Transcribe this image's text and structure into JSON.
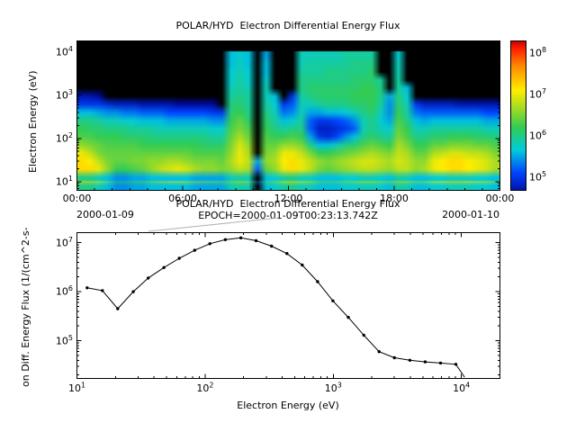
{
  "figure_bg": "#ffffff",
  "connector_line_color": "#b3b3b3",
  "chart_data": [
    {
      "type": "heatmap",
      "title": "POLAR/HYD  Electron Differential Energy Flux",
      "ylabel": "Electron Energy (eV)",
      "y_ticks": [
        "10^1",
        "10^2",
        "10^3",
        "10^4"
      ],
      "y_tick_log_values": [
        1,
        2,
        3,
        4
      ],
      "ylim_log_ev": [
        0.8,
        4.25
      ],
      "x_ticks": [
        "00:00",
        "06:00",
        "12:00",
        "18:00",
        "00:00"
      ],
      "x_tick_hours": [
        0,
        6,
        12,
        18,
        24
      ],
      "x_date_start": "2000-01-09",
      "x_date_end": "2000-01-10",
      "xlim_hours": [
        0,
        24
      ],
      "colorbar": {
        "ticks": [
          "10^5",
          "10^6",
          "10^7",
          "10^8"
        ],
        "tick_log_values": [
          5,
          6,
          7,
          8
        ],
        "range_log_flux": [
          4.7,
          8.3
        ],
        "no_data_color": "#000000",
        "palette_stops": [
          [
            4.5,
            "#000088"
          ],
          [
            5.1,
            "#0044ff"
          ],
          [
            5.65,
            "#00ccdd"
          ],
          [
            6.2,
            "#33cc55"
          ],
          [
            6.7,
            "#aadd22"
          ],
          [
            7.1,
            "#ffee00"
          ],
          [
            7.7,
            "#ff8800"
          ],
          [
            8.1,
            "#ff2200"
          ],
          [
            8.3,
            "#cc0000"
          ]
        ]
      },
      "grid": {
        "hours_per_column": 0.5,
        "energy_log_range": [
          1,
          4
        ],
        "rows_per_column": 16,
        "values_log_flux": [
          [
            6.0,
            7.2,
            7.2,
            7.0,
            6.6,
            6.3,
            6.2,
            6.0,
            5.6,
            5.0,
            4.7,
            0,
            0,
            0,
            0,
            0
          ],
          [
            6.0,
            7.2,
            7.1,
            6.8,
            6.5,
            6.3,
            6.1,
            6.0,
            5.6,
            5.0,
            4.7,
            0,
            0,
            0,
            0,
            0
          ],
          [
            5.8,
            7.0,
            6.8,
            6.5,
            6.4,
            6.2,
            6.1,
            5.9,
            5.5,
            5.0,
            4.6,
            0,
            0,
            0,
            0,
            0
          ],
          [
            5.6,
            6.6,
            6.5,
            6.4,
            6.3,
            6.2,
            6.0,
            5.8,
            5.4,
            4.9,
            0,
            0,
            0,
            0,
            0,
            0
          ],
          [
            5.4,
            6.2,
            6.4,
            6.4,
            6.3,
            6.2,
            6.0,
            5.8,
            5.4,
            4.8,
            0,
            0,
            0,
            0,
            0,
            0
          ],
          [
            5.4,
            6.2,
            6.4,
            6.4,
            6.3,
            6.1,
            6.0,
            5.7,
            5.3,
            4.8,
            0,
            0,
            0,
            0,
            0,
            0
          ],
          [
            5.5,
            6.3,
            6.5,
            6.4,
            6.3,
            6.1,
            5.9,
            5.7,
            5.3,
            4.8,
            0,
            0,
            0,
            0,
            0,
            0
          ],
          [
            5.5,
            6.4,
            6.5,
            6.4,
            6.2,
            6.1,
            5.9,
            5.6,
            5.2,
            4.7,
            0,
            0,
            0,
            0,
            0,
            0
          ],
          [
            5.6,
            6.6,
            6.6,
            6.4,
            6.2,
            6.0,
            5.9,
            5.6,
            5.2,
            4.7,
            0,
            0,
            0,
            0,
            0,
            0
          ],
          [
            5.6,
            6.8,
            6.6,
            6.4,
            6.2,
            6.0,
            5.8,
            5.6,
            5.2,
            4.7,
            0,
            0,
            0,
            0,
            0,
            0
          ],
          [
            5.6,
            6.9,
            6.7,
            6.4,
            6.2,
            6.0,
            5.8,
            5.5,
            5.1,
            4.7,
            0,
            0,
            0,
            0,
            0,
            0
          ],
          [
            5.6,
            7.0,
            6.7,
            6.4,
            6.2,
            6.0,
            5.8,
            5.5,
            5.1,
            4.6,
            0,
            0,
            0,
            0,
            0,
            0
          ],
          [
            5.6,
            6.9,
            6.6,
            6.4,
            6.2,
            6.0,
            5.8,
            5.5,
            5.1,
            4.6,
            0,
            0,
            0,
            0,
            0,
            0
          ],
          [
            5.5,
            6.7,
            6.5,
            6.3,
            6.2,
            6.0,
            5.8,
            5.5,
            5.1,
            4.6,
            0,
            0,
            0,
            0,
            0,
            0
          ],
          [
            5.5,
            6.6,
            6.5,
            6.3,
            6.1,
            6.0,
            5.8,
            5.5,
            5.1,
            4.6,
            0,
            0,
            0,
            0,
            0,
            0
          ],
          [
            5.5,
            6.6,
            6.5,
            6.3,
            6.1,
            5.9,
            5.7,
            5.4,
            5.0,
            4.6,
            0,
            0,
            0,
            0,
            0,
            0
          ],
          [
            5.5,
            6.5,
            6.4,
            6.3,
            6.1,
            5.9,
            5.7,
            5.4,
            5.0,
            0,
            0,
            0,
            0,
            0,
            0,
            0
          ],
          [
            5.8,
            6.6,
            6.7,
            6.6,
            6.5,
            6.4,
            6.3,
            6.2,
            6.1,
            6.0,
            5.9,
            5.8,
            5.7,
            5.7,
            5.6,
            5.6
          ],
          [
            5.9,
            6.8,
            7.0,
            7.0,
            6.9,
            6.7,
            6.5,
            6.4,
            6.2,
            6.1,
            6.0,
            5.9,
            5.9,
            5.8,
            5.8,
            5.7
          ],
          [
            5.8,
            6.7,
            6.8,
            6.7,
            6.6,
            6.4,
            6.3,
            6.1,
            6.0,
            5.9,
            5.9,
            5.8,
            5.7,
            5.7,
            5.6,
            5.6
          ],
          [
            0,
            5.2,
            5.5,
            0,
            0,
            0,
            0,
            0,
            0,
            0,
            0,
            0,
            0,
            0,
            0,
            0
          ],
          [
            5.6,
            6.4,
            6.6,
            6.5,
            6.4,
            6.3,
            6.2,
            6.1,
            6.0,
            5.9,
            5.8,
            5.8,
            5.7,
            5.6,
            5.6,
            5.5
          ],
          [
            5.7,
            6.6,
            6.7,
            6.6,
            6.4,
            6.2,
            6.0,
            5.9,
            5.8,
            5.7,
            5.6,
            0,
            0,
            0,
            0,
            0
          ],
          [
            5.9,
            7.0,
            7.1,
            7.0,
            6.6,
            6.2,
            5.9,
            5.6,
            5.3,
            5.0,
            0,
            0,
            0,
            0,
            0,
            0
          ],
          [
            6.0,
            7.2,
            7.2,
            7.0,
            6.6,
            6.3,
            6.0,
            5.7,
            5.4,
            5.2,
            5.0,
            0,
            0,
            0,
            0,
            0
          ],
          [
            5.8,
            7.0,
            7.0,
            6.8,
            6.5,
            6.2,
            6.0,
            5.9,
            5.8,
            5.8,
            5.9,
            6.0,
            6.0,
            5.9,
            5.8,
            5.8
          ],
          [
            5.8,
            6.8,
            6.8,
            6.5,
            6.0,
            5.5,
            5.2,
            5.2,
            5.5,
            5.8,
            6.0,
            6.1,
            6.0,
            5.9,
            5.9,
            5.8
          ],
          [
            5.6,
            6.5,
            6.6,
            6.2,
            5.6,
            5.0,
            4.8,
            5.0,
            5.5,
            5.9,
            6.1,
            6.1,
            6.0,
            5.9,
            5.9,
            5.8
          ],
          [
            5.6,
            6.4,
            6.5,
            6.2,
            5.6,
            4.9,
            4.8,
            5.0,
            5.6,
            6.0,
            6.1,
            6.1,
            6.0,
            6.0,
            5.9,
            5.8
          ],
          [
            5.6,
            6.5,
            6.6,
            6.3,
            5.8,
            5.1,
            4.9,
            5.1,
            5.6,
            6.0,
            6.1,
            6.1,
            6.0,
            6.0,
            5.9,
            5.8
          ],
          [
            5.7,
            6.6,
            6.7,
            6.4,
            6.0,
            5.4,
            5.0,
            5.2,
            5.7,
            6.0,
            6.1,
            6.1,
            6.0,
            6.0,
            5.9,
            5.9
          ],
          [
            5.7,
            6.7,
            6.8,
            6.5,
            6.1,
            5.6,
            5.2,
            5.4,
            5.8,
            6.1,
            6.2,
            6.1,
            6.1,
            6.0,
            6.0,
            5.9
          ],
          [
            5.8,
            6.8,
            6.9,
            6.6,
            6.3,
            6.0,
            5.8,
            5.8,
            6.0,
            6.1,
            6.2,
            6.2,
            6.1,
            6.0,
            6.0,
            5.9
          ],
          [
            5.8,
            6.8,
            6.9,
            6.7,
            6.4,
            6.1,
            6.0,
            6.0,
            6.1,
            6.2,
            6.2,
            6.2,
            6.1,
            6.1,
            6.0,
            5.9
          ],
          [
            5.7,
            6.7,
            6.8,
            6.6,
            6.3,
            6.0,
            5.8,
            5.7,
            5.8,
            5.9,
            6.0,
            6.0,
            5.9,
            0,
            0,
            0
          ],
          [
            5.6,
            6.6,
            6.7,
            6.5,
            6.2,
            5.9,
            5.7,
            5.5,
            5.4,
            5.4,
            5.5,
            0,
            0,
            0,
            0,
            0
          ],
          [
            5.9,
            6.8,
            6.9,
            6.8,
            6.7,
            6.5,
            6.4,
            6.3,
            6.2,
            6.1,
            6.0,
            5.9,
            5.9,
            5.8,
            5.8,
            5.7
          ],
          [
            5.8,
            6.8,
            6.8,
            6.7,
            6.5,
            6.3,
            6.2,
            6.0,
            5.9,
            5.8,
            5.7,
            5.6,
            0,
            0,
            0,
            0
          ],
          [
            5.6,
            6.6,
            6.6,
            6.4,
            6.2,
            6.0,
            5.8,
            5.6,
            5.3,
            5.0,
            0,
            0,
            0,
            0,
            0,
            0
          ],
          [
            5.6,
            6.7,
            6.6,
            6.4,
            6.2,
            6.0,
            5.8,
            5.5,
            5.2,
            4.8,
            0,
            0,
            0,
            0,
            0,
            0
          ],
          [
            5.7,
            7.0,
            7.0,
            6.7,
            6.4,
            6.1,
            5.9,
            5.6,
            5.2,
            4.8,
            0,
            0,
            0,
            0,
            0,
            0
          ],
          [
            5.7,
            7.1,
            7.1,
            6.8,
            6.4,
            6.1,
            5.9,
            5.6,
            5.2,
            4.8,
            0,
            0,
            0,
            0,
            0,
            0
          ],
          [
            5.8,
            7.2,
            7.2,
            6.9,
            6.5,
            6.2,
            5.9,
            5.6,
            5.2,
            4.8,
            0,
            0,
            0,
            0,
            0,
            0
          ],
          [
            5.8,
            7.2,
            7.2,
            6.9,
            6.5,
            6.2,
            5.9,
            5.6,
            5.2,
            4.7,
            0,
            0,
            0,
            0,
            0,
            0
          ],
          [
            5.8,
            7.1,
            7.1,
            6.8,
            6.5,
            6.2,
            5.9,
            5.6,
            5.2,
            4.7,
            0,
            0,
            0,
            0,
            0,
            0
          ],
          [
            5.7,
            7.0,
            7.0,
            6.8,
            6.4,
            6.1,
            5.9,
            5.6,
            5.2,
            4.7,
            0,
            0,
            0,
            0,
            0,
            0
          ],
          [
            5.7,
            6.9,
            6.9,
            6.7,
            6.4,
            6.1,
            5.8,
            5.5,
            5.1,
            4.7,
            0,
            0,
            0,
            0,
            0,
            0
          ],
          [
            5.6,
            6.7,
            6.7,
            6.5,
            6.3,
            6.0,
            5.8,
            5.5,
            5.1,
            4.7,
            0,
            0,
            0,
            0,
            0,
            0
          ]
        ]
      }
    },
    {
      "type": "line",
      "title": "POLAR/HYD  Electron Differential Energy Flux",
      "subtitle": "EPOCH=2000-01-09T00:23:13.742Z",
      "xlabel": "Electron Energy (eV)",
      "ylabel": "on Diff. Energy Flux (1/(cm^2-s-",
      "x_ticks": [
        "10^1",
        "10^2",
        "10^3",
        "10^4"
      ],
      "x_tick_log_values": [
        1,
        2,
        3,
        4
      ],
      "y_ticks": [
        "10^5",
        "10^6",
        "10^7"
      ],
      "y_tick_log_values": [
        5,
        6,
        7
      ],
      "xlim": [
        10,
        20000
      ],
      "ylim": [
        17000,
        16000000
      ],
      "line_color": "#000000",
      "marker": "filled-circle",
      "points": [
        [
          12,
          1200000.0
        ],
        [
          15.8,
          1050000.0
        ],
        [
          20.8,
          450000.0
        ],
        [
          27.5,
          1000000.0
        ],
        [
          36,
          1900000.0
        ],
        [
          47.7,
          3100000.0
        ],
        [
          62.9,
          4800000.0
        ],
        [
          82.9,
          7000000.0
        ],
        [
          109,
          9500000.0
        ],
        [
          144,
          11500000.0
        ],
        [
          190,
          12500000.0
        ],
        [
          250,
          11000000.0
        ],
        [
          330,
          8500000.0
        ],
        [
          435,
          6000000.0
        ],
        [
          573,
          3500000.0
        ],
        [
          755,
          1600000.0
        ],
        [
          995,
          650000.0
        ],
        [
          1310,
          300000.0
        ],
        [
          1730,
          130000.0
        ],
        [
          2280,
          60000.0
        ],
        [
          3000,
          45000.0
        ],
        [
          3960,
          40000.0
        ],
        [
          5220,
          37000.0
        ],
        [
          6880,
          35000.0
        ],
        [
          9060,
          33000.0
        ]
      ],
      "tail_point": [
        10600,
        18000.0
      ]
    }
  ]
}
